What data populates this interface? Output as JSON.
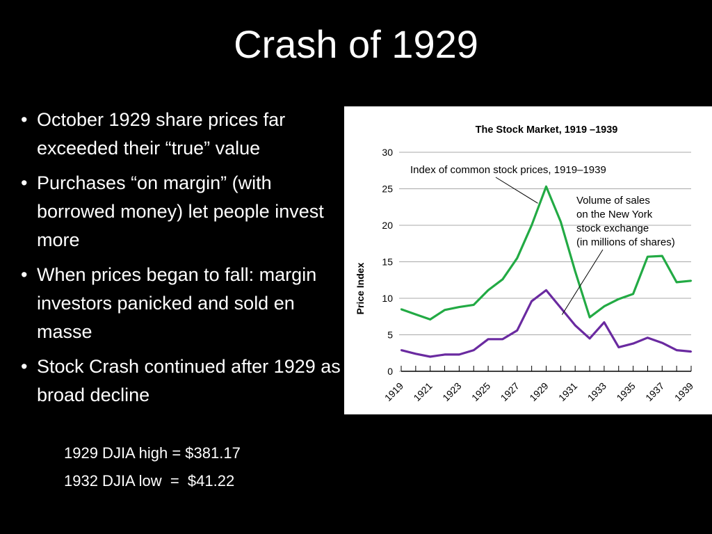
{
  "slide": {
    "title": "Crash of 1929",
    "bullets": [
      "October 1929 share prices far exceeded their “true” value",
      "Purchases “on margin” (with borrowed money) let people invest more",
      "When prices began to fall: margin investors panicked and sold en masse",
      "Stock Crash continued after 1929 as broad decline"
    ],
    "sub_bullets": [
      "1929 DJIA high = $381.17",
      "1932 DJIA low  =  $41.22"
    ],
    "bullet_glyph": "•"
  },
  "chart_data": {
    "type": "line",
    "title": "The Stock Market, 1919 –1939",
    "ylabel": "Price Index",
    "xlabel": "",
    "ylim": [
      0,
      30
    ],
    "yticks": [
      0,
      5,
      10,
      15,
      20,
      25,
      30
    ],
    "xlim": [
      1919,
      1939
    ],
    "xtick_labels": [
      "1919",
      "1921",
      "1923",
      "1925",
      "1927",
      "1929",
      "1931",
      "1933",
      "1935",
      "1937",
      "1939"
    ],
    "grid": true,
    "x": [
      1919,
      1920,
      1921,
      1922,
      1923,
      1924,
      1925,
      1926,
      1927,
      1928,
      1929,
      1930,
      1931,
      1932,
      1933,
      1934,
      1935,
      1936,
      1937,
      1938,
      1939
    ],
    "series": [
      {
        "name": "Index of common stock prices, 1919–1939",
        "color": "#22aa44",
        "values": [
          8.5,
          7.8,
          7.1,
          8.4,
          8.8,
          9.1,
          11.1,
          12.6,
          15.5,
          20.0,
          25.3,
          20.5,
          13.7,
          7.4,
          8.9,
          9.9,
          10.6,
          15.7,
          15.8,
          12.2,
          12.4
        ]
      },
      {
        "name": "Volume of sales on the New York stock exchange (in millions of shares)",
        "color": "#6a2aa0",
        "values": [
          2.9,
          2.4,
          2.0,
          2.3,
          2.3,
          2.9,
          4.4,
          4.4,
          5.6,
          9.6,
          11.1,
          8.7,
          6.3,
          4.5,
          6.7,
          3.3,
          3.8,
          4.6,
          3.9,
          2.9,
          2.7
        ]
      }
    ],
    "annotations": [
      {
        "lines": [
          "Index of common stock prices, 1919–1939"
        ],
        "points_to": [
          1929,
          25.3
        ]
      },
      {
        "lines": [
          "Volume of sales",
          "on the New York",
          "stock exchange",
          "(in millions of shares)"
        ],
        "points_to": [
          1930,
          8.7
        ]
      }
    ]
  }
}
